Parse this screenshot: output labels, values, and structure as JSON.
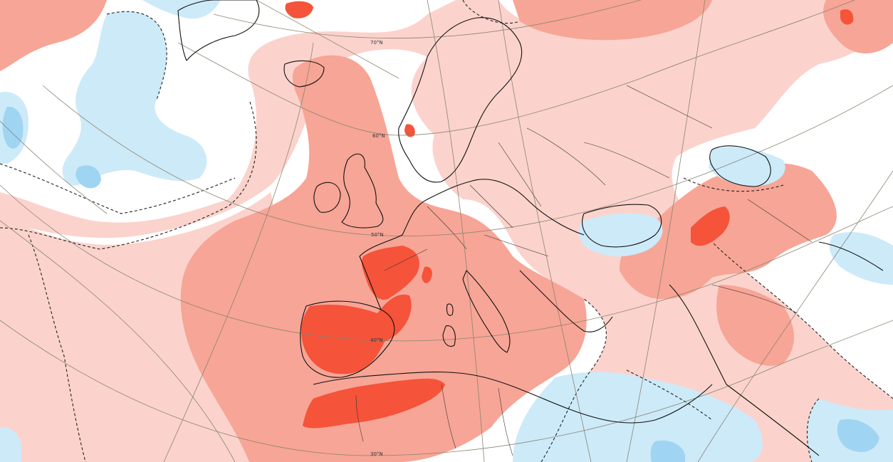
{
  "map": {
    "latitude_labels": [
      "70°N",
      "60°N",
      "50°N",
      "40°N",
      "30°N"
    ],
    "colors": {
      "ocean_background": "#ffffff",
      "anomaly_strong_warm": "#f5533a",
      "anomaly_warm": "#f7a596",
      "anomaly_weak_warm": "#fbd3cc",
      "anomaly_weak_cool": "#cdeaf9",
      "anomaly_cool": "#9fd5f2",
      "coastline": "#111111",
      "graticule": "#8a8470"
    }
  }
}
